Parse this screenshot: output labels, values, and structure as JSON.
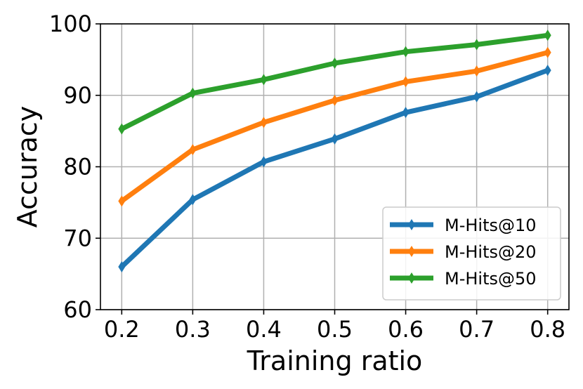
{
  "chart_data": {
    "type": "line",
    "xlabel": "Training ratio",
    "ylabel": "Accuracy",
    "x": [
      0.2,
      0.3,
      0.4,
      0.5,
      0.6,
      0.7,
      0.8
    ],
    "x_tick_labels": [
      "0.2",
      "0.3",
      "0.4",
      "0.5",
      "0.6",
      "0.7",
      "0.8"
    ],
    "xlim": [
      0.17,
      0.83
    ],
    "ylim": [
      60,
      100
    ],
    "y_ticks": [
      60,
      70,
      80,
      90,
      100
    ],
    "y_tick_labels": [
      "60",
      "70",
      "80",
      "90",
      "100"
    ],
    "grid": true,
    "legend_position": "lower-right",
    "marker": "thin-diamond",
    "series": [
      {
        "name": "M-Hits@10",
        "color": "#1f77b4",
        "values": [
          66.0,
          75.4,
          80.7,
          83.9,
          87.6,
          89.8,
          93.5
        ]
      },
      {
        "name": "M-Hits@20",
        "color": "#ff7f0e",
        "values": [
          75.2,
          82.4,
          86.2,
          89.3,
          91.9,
          93.4,
          96.0
        ]
      },
      {
        "name": "M-Hits@50",
        "color": "#2ca02c",
        "values": [
          85.3,
          90.3,
          92.2,
          94.5,
          96.1,
          97.1,
          98.4
        ]
      }
    ]
  }
}
